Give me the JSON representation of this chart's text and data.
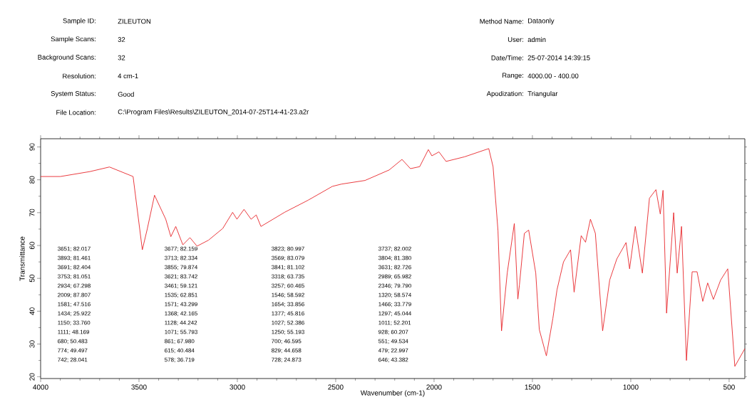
{
  "chart_data": {
    "type": "line",
    "xlabel": "Wavenumber (cm-1)",
    "ylabel": "Transmittance",
    "xlim": [
      4000,
      420
    ],
    "ylim": [
      19.5,
      92.5
    ],
    "xticks": [
      4000,
      3500,
      3000,
      2500,
      2000,
      1500,
      1000,
      500
    ],
    "yticks": [
      20,
      30,
      40,
      50,
      60,
      70,
      80,
      90
    ],
    "marker": "none",
    "grid": false,
    "series": [
      {
        "color": "#e8262a",
        "x": [
          4000,
          3900,
          3750,
          3650,
          3530,
          3483,
          3458,
          3421,
          3364,
          3338,
          3313,
          3277,
          3241,
          3205,
          3147,
          3074,
          3024,
          3002,
          2966,
          2930,
          2904,
          2880,
          2760,
          2640,
          2517,
          2470,
          2351,
          2228,
          2163,
          2120,
          2073,
          2029,
          2011,
          1975,
          1939,
          1845,
          1722,
          1700,
          1675,
          1657,
          1628,
          1592,
          1574,
          1566,
          1541,
          1519,
          1483,
          1465,
          1429,
          1396,
          1375,
          1342,
          1306,
          1288,
          1252,
          1230,
          1205,
          1180,
          1143,
          1107,
          1071,
          1024,
          1006,
          977,
          941,
          905,
          872,
          850,
          836,
          818,
          782,
          764,
          742,
          717,
          688,
          663,
          634,
          609,
          580,
          543,
          507,
          471,
          420
        ],
        "values": [
          81,
          81,
          82.5,
          83.9,
          81,
          58.7,
          65,
          75.3,
          68,
          62.7,
          65.8,
          60.2,
          62.4,
          59.8,
          61.6,
          65.2,
          70.1,
          68,
          71,
          68,
          69.3,
          65.8,
          70.1,
          73.8,
          78,
          78.7,
          79.8,
          83,
          86.2,
          83.4,
          84,
          89.2,
          87.3,
          88.5,
          85.6,
          87,
          89.5,
          84,
          64.5,
          34,
          51.6,
          66.7,
          43.7,
          48,
          63.7,
          64.7,
          51.6,
          34.4,
          26.4,
          37.8,
          46.5,
          55,
          58.7,
          45.8,
          63,
          61,
          68,
          63.7,
          34,
          49.5,
          55.9,
          60.9,
          52.9,
          65.8,
          51.6,
          74.4,
          77,
          69.6,
          76.8,
          39.4,
          70,
          51.6,
          65.8,
          25,
          52,
          52,
          43,
          48.6,
          43.6,
          49.5,
          52.9,
          23.2,
          28.6
        ]
      }
    ],
    "annotations": [
      "Sample ID:",
      "ZILEUTON",
      "Sample Scans:",
      "32",
      "Background Scans:",
      "32",
      "Resolution:",
      "4 cm-1",
      "System Status:",
      "Good",
      "File Location:",
      "C:\\Program Files\\Results\\ZILEUTON_2014-07-25T14-41-23.a2r",
      "Method Name:",
      "Dataonly",
      "User:",
      "admin",
      "Date/Time:",
      "25-07-2014  14:39:15",
      "Range:",
      "4000.00 - 400.00",
      "Apodization:",
      "Triangular",
      "3651; 82.017",
      "3677; 82.159",
      "3823; 80.997",
      "3737; 82.002",
      "3893; 81.461",
      "3713; 82.334",
      "3569; 83.079",
      "3804; 81.380",
      "3691; 82.404",
      "3855; 79.874",
      "3841; 81.102",
      "3631; 82.726",
      "3753; 81.051",
      "3621; 83.742",
      "3318; 63.735",
      "2989; 65.982",
      "2934; 67.298",
      "3461; 59.121",
      "3257; 60.465",
      "2346; 79.790",
      "2009; 87.807",
      "1535; 62.851",
      "1546; 58.592",
      "1320; 58.574",
      "1581; 47.516",
      "1571; 43.299",
      "1654; 33.856",
      "1466; 33.779",
      "1434; 25.922",
      "1368; 42.165",
      "1377; 45.816",
      "1297; 45.044",
      "1150; 33.760",
      "1128; 44.242",
      "1027; 52.386",
      "1011; 52.201",
      "1111; 48.169",
      "1071; 55.793",
      "1250; 55.193",
      "928; 60.207",
      "680; 50.483",
      "861; 67.980",
      "700; 46.595",
      "551; 49.534",
      "774; 49.497",
      "615; 40.484",
      "829; 44.658",
      "479; 22.997",
      "742; 28.041",
      "578; 36.719",
      "728; 24.873",
      "646; 43.382"
    ]
  }
}
